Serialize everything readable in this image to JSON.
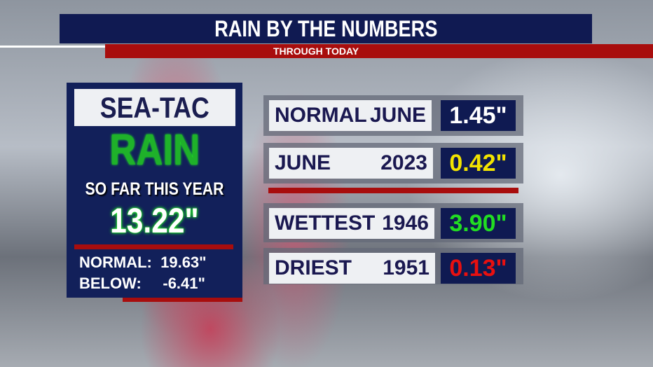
{
  "header": {
    "title": "RAIN BY THE NUMBERS",
    "subtitle": "THROUGH TODAY"
  },
  "panel": {
    "station": "SEA-TAC",
    "rain": "RAIN",
    "period": "SO FAR THIS YEAR",
    "total": "13.22\"",
    "normal_label": "NORMAL:",
    "normal_value": "19.63\"",
    "below_label": "BELOW:",
    "below_value": "-6.41\""
  },
  "rows": [
    {
      "label": "NORMAL",
      "year": "JUNE",
      "value": "1.45\"",
      "color": "#ffffff"
    },
    {
      "label": "JUNE",
      "year": "2023",
      "value": "0.42\"",
      "color": "#f2e400"
    },
    {
      "label": "WETTEST",
      "year": "1946",
      "value": "3.90\"",
      "color": "#22dd22"
    },
    {
      "label": "DRIEST",
      "year": "1951",
      "value": "0.13\"",
      "color": "#e81010"
    }
  ]
}
